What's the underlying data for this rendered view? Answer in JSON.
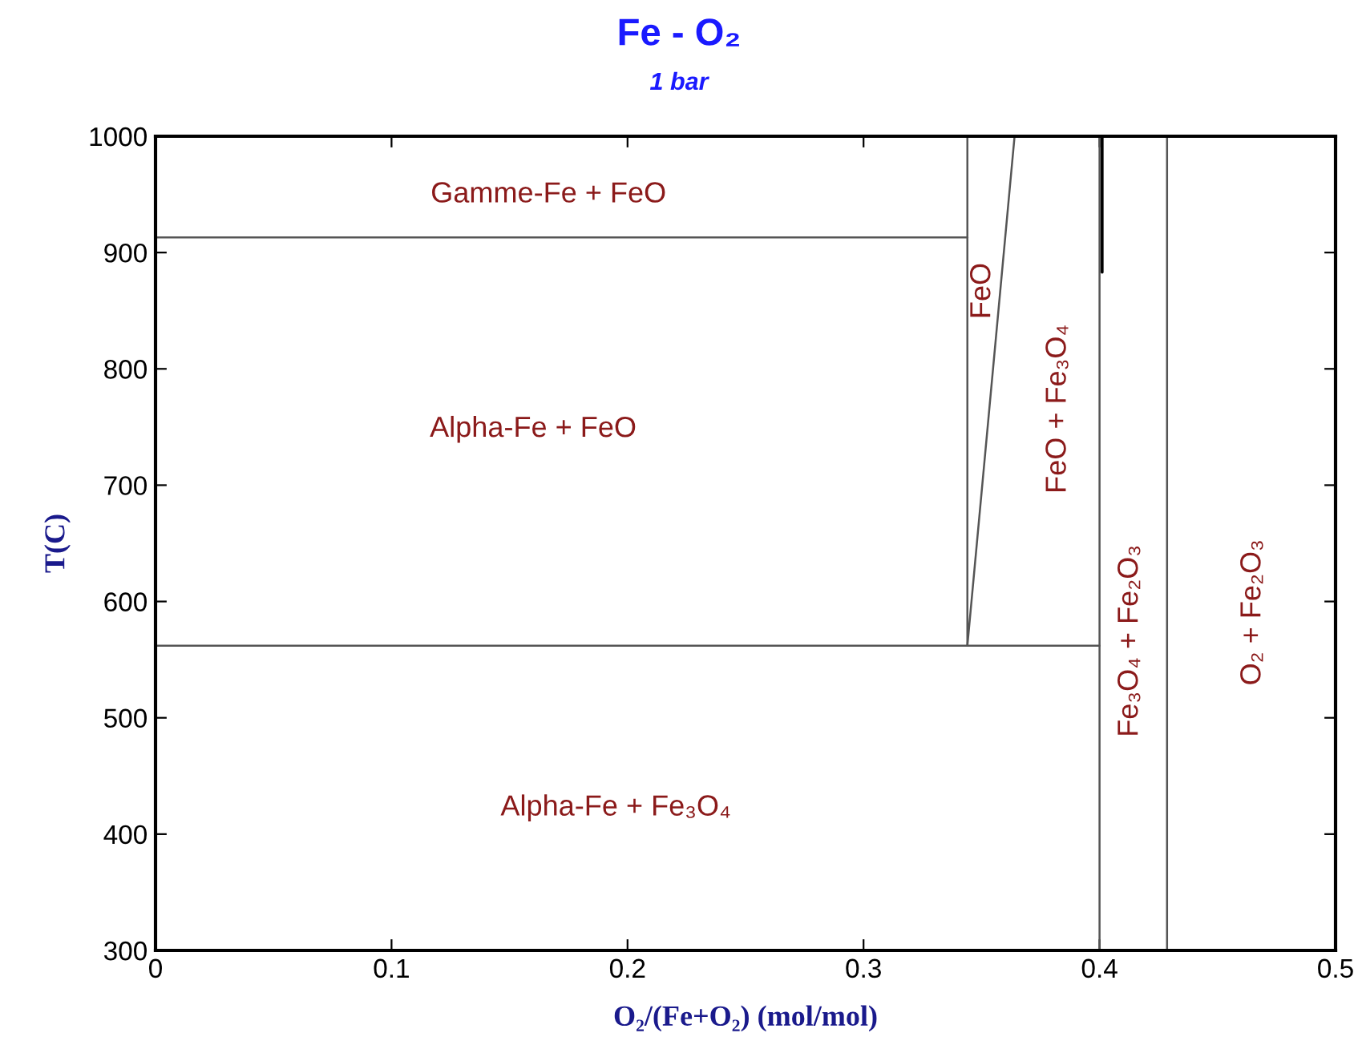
{
  "chart_data": {
    "type": "line",
    "title": "Fe - O₂",
    "subtitle": "1 bar",
    "xlabel": "O₂/(Fe+O₂) (mol/mol)",
    "ylabel": "T(C)",
    "xlim": [
      0,
      0.5
    ],
    "xticks": [
      0,
      0.1,
      0.2,
      0.3,
      0.4,
      0.5
    ],
    "ylim": [
      300,
      1000
    ],
    "yticks": [
      300,
      400,
      500,
      600,
      700,
      800,
      900,
      1000
    ],
    "grid": false,
    "legend": false,
    "series": [
      {
        "color": "#555555",
        "x": [
          0,
          0.344
        ],
        "values": [
          913,
          913
        ]
      },
      {
        "color": "#555555",
        "x": [
          0,
          0.4
        ],
        "values": [
          562,
          562
        ]
      },
      {
        "color": "#555555",
        "x": [
          0.344,
          0.344
        ],
        "values": [
          562,
          1000
        ]
      },
      {
        "color": "#555555",
        "x": [
          0.344,
          0.364
        ],
        "values": [
          562,
          1000
        ]
      },
      {
        "color": "#555555",
        "x": [
          0.4,
          0.4
        ],
        "values": [
          300,
          1000
        ]
      },
      {
        "color": "#000000",
        "x": [
          0.4011,
          0.4011
        ],
        "values": [
          883,
          1000
        ]
      },
      {
        "color": "#555555",
        "x": [
          0.4286,
          0.4286
        ],
        "values": [
          300,
          1000
        ]
      }
    ],
    "annotations": [
      "Gamme-Fe + FeO",
      "Alpha-Fe + FeO",
      "Alpha-Fe + Fe₃O₄",
      "FeO",
      "FeO + Fe₃O₄",
      "Fe₃O₄ + Fe₂O₃",
      "O₂ + Fe₂O₃"
    ]
  }
}
